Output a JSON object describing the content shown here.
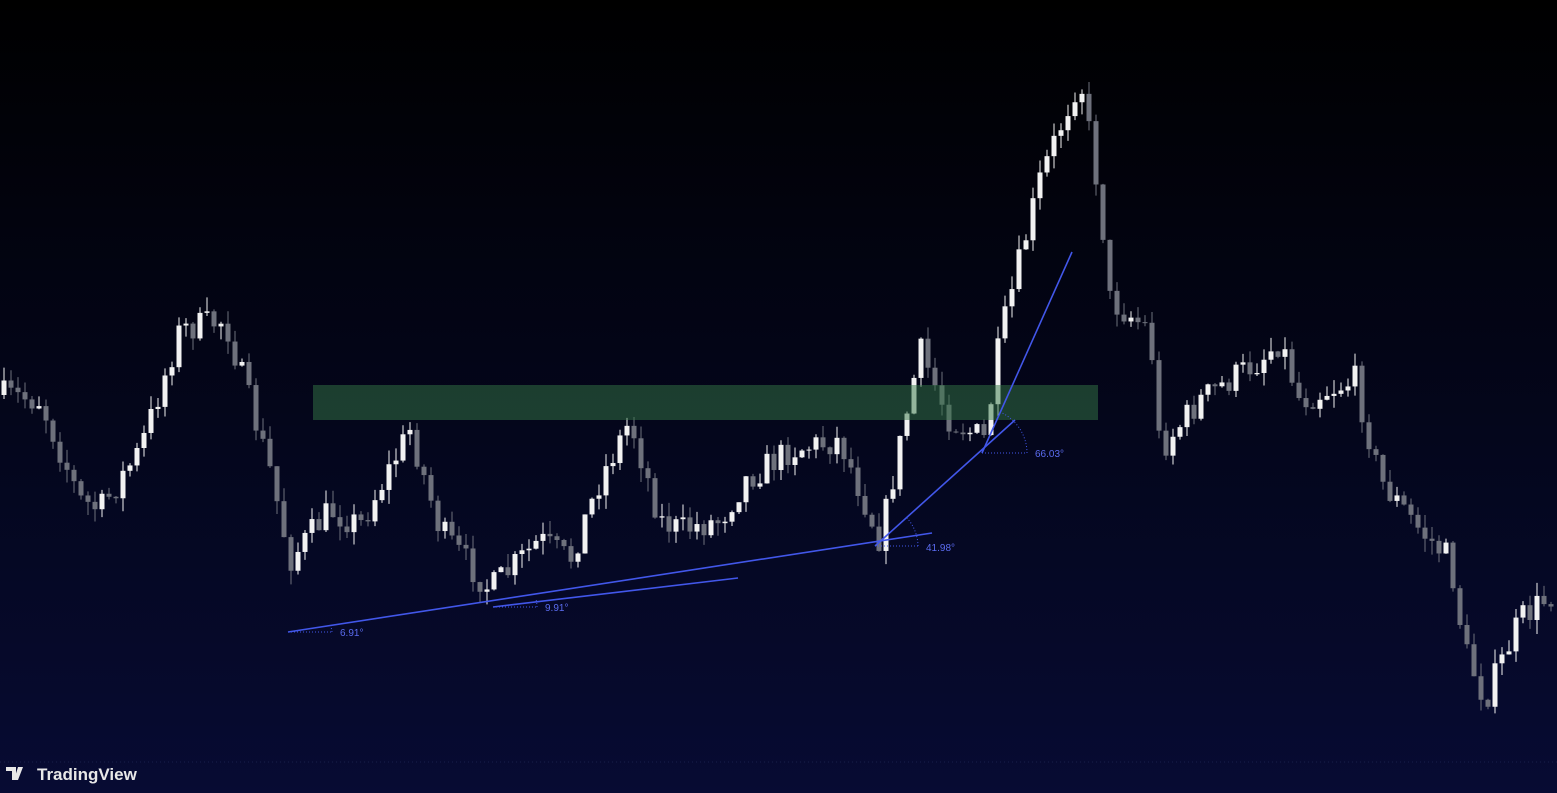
{
  "annotations": [
    {
      "label": "6.91°"
    },
    {
      "label": "9.91°"
    },
    {
      "label": "41.98°"
    },
    {
      "label": "66.03°"
    }
  ],
  "logo": {
    "text": "TradingView"
  }
}
